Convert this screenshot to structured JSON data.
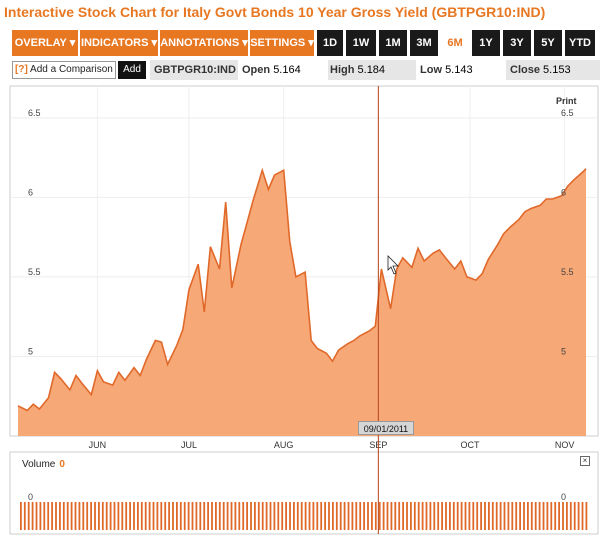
{
  "title": "Interactive Stock Chart for Italy Govt Bonds 10 Year Gross Yield (GBTPGR10:IND)",
  "toolbar": {
    "menus": [
      {
        "label": "OVERLAY ▾"
      },
      {
        "label": "INDICATORS ▾"
      },
      {
        "label": "ANNOTATIONS ▾"
      },
      {
        "label": "SETTINGS ▾"
      }
    ],
    "ranges": [
      "1D",
      "1W",
      "1M",
      "3M",
      "6M",
      "1Y",
      "3Y",
      "5Y",
      "YTD"
    ],
    "active_range": "6M"
  },
  "info_bar": {
    "compare_icon": "?",
    "compare_placeholder": "Add a Comparison",
    "add_label": "Add",
    "ticker": "GBTPGR10:IND",
    "open_label": "Open",
    "open_value": "5.164",
    "high_label": "High",
    "high_value": "5.184",
    "low_label": "Low",
    "low_value": "5.143",
    "close_label": "Close",
    "close_value": "5.153"
  },
  "print_label": "Print",
  "crosshair_date": "09/01/2011",
  "volume": {
    "label": "Volume",
    "value": "0",
    "axis_label": "0",
    "close_icon": "×"
  },
  "colors": {
    "accent": "#e87722",
    "area_fill": "#f7a877",
    "area_line": "#e0692a",
    "crosshair": "#b8441a"
  },
  "chart_data": {
    "type": "area",
    "ylim": [
      4.5,
      6.7
    ],
    "y_ticks": [
      "6.5",
      "6",
      "5.5",
      "5"
    ],
    "x_tick_labels": [
      "JUN",
      "JUL",
      "AUG",
      "SEP",
      "OCT",
      "NOV"
    ],
    "x_tick_dates": [
      "2011-06-01",
      "2011-07-01",
      "2011-08-01",
      "2011-09-01",
      "2011-10-01",
      "2011-11-01"
    ],
    "x_start": "2011-05-06",
    "x_end": "2011-11-08",
    "crosshair_date_iso": "2011-09-01",
    "series": [
      {
        "dates": [
          "2011-05-06",
          "2011-05-09",
          "2011-05-11",
          "2011-05-13",
          "2011-05-16",
          "2011-05-18",
          "2011-05-20",
          "2011-05-23",
          "2011-05-25",
          "2011-05-27",
          "2011-05-30",
          "2011-06-01",
          "2011-06-03",
          "2011-06-06",
          "2011-06-08",
          "2011-06-10",
          "2011-06-13",
          "2011-06-15",
          "2011-06-17",
          "2011-06-20",
          "2011-06-22",
          "2011-06-24",
          "2011-06-27",
          "2011-06-29",
          "2011-07-01",
          "2011-07-04",
          "2011-07-06",
          "2011-07-08",
          "2011-07-11",
          "2011-07-13",
          "2011-07-15",
          "2011-07-18",
          "2011-07-20",
          "2011-07-22",
          "2011-07-25",
          "2011-07-27",
          "2011-07-29",
          "2011-08-01",
          "2011-08-03",
          "2011-08-05",
          "2011-08-08",
          "2011-08-10",
          "2011-08-12",
          "2011-08-15",
          "2011-08-17",
          "2011-08-19",
          "2011-08-22",
          "2011-08-24",
          "2011-08-26",
          "2011-08-29",
          "2011-08-31",
          "2011-09-02",
          "2011-09-05",
          "2011-09-07",
          "2011-09-09",
          "2011-09-12",
          "2011-09-14",
          "2011-09-16",
          "2011-09-19",
          "2011-09-21",
          "2011-09-23",
          "2011-09-26",
          "2011-09-28",
          "2011-09-30",
          "2011-10-03",
          "2011-10-05",
          "2011-10-07",
          "2011-10-10",
          "2011-10-12",
          "2011-10-14",
          "2011-10-17",
          "2011-10-19",
          "2011-10-21",
          "2011-10-24",
          "2011-10-26",
          "2011-10-28",
          "2011-10-31",
          "2011-11-02",
          "2011-11-04",
          "2011-11-07",
          "2011-11-08"
        ],
        "values": [
          4.69,
          4.66,
          4.7,
          4.67,
          4.74,
          4.9,
          4.86,
          4.79,
          4.88,
          4.83,
          4.76,
          4.91,
          4.84,
          4.82,
          4.9,
          4.85,
          4.93,
          4.88,
          4.98,
          5.1,
          5.09,
          4.95,
          5.07,
          5.17,
          5.42,
          5.58,
          5.28,
          5.69,
          5.55,
          5.97,
          5.43,
          5.7,
          5.84,
          5.98,
          6.17,
          6.05,
          6.14,
          6.17,
          5.72,
          5.5,
          5.53,
          5.1,
          5.05,
          5.02,
          4.97,
          5.04,
          5.08,
          5.1,
          5.13,
          5.16,
          5.19,
          5.55,
          5.3,
          5.55,
          5.62,
          5.56,
          5.68,
          5.6,
          5.65,
          5.67,
          5.62,
          5.55,
          5.6,
          5.5,
          5.48,
          5.52,
          5.61,
          5.7,
          5.77,
          5.81,
          5.86,
          5.91,
          5.93,
          5.95,
          5.99,
          5.99,
          6.01,
          6.07,
          6.11,
          6.16,
          6.18
        ]
      }
    ],
    "volume": {
      "ylim": [
        0,
        1
      ],
      "y_ticks": [
        "0"
      ]
    }
  }
}
